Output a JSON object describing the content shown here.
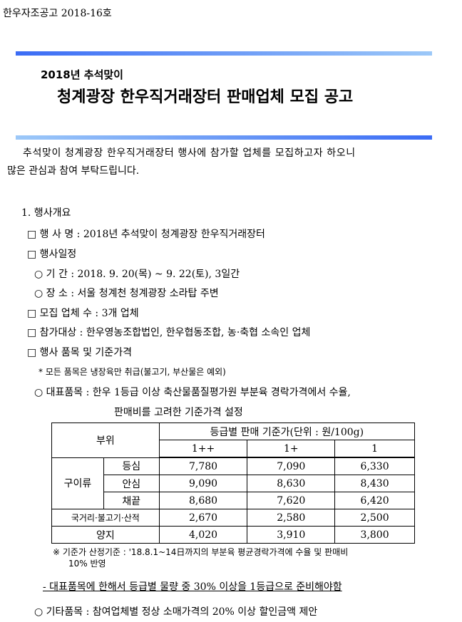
{
  "doc_number": "한우자조공고 2018-16호",
  "subtitle": "2018년 추석맞이",
  "title": "청계광장 한우직거래장터 판매업체 모집 공고",
  "intro": [
    "추석맞이 청계광장 한우직거래장터 행사에 참가할 업체를 모집하고자 하오니",
    "많은 관심과 참여 부탁드립니다."
  ],
  "section1": "1. 행사개요",
  "items": [
    "□ 행 사 명 : 2018년 추석맞이 청계광장 한우직거래장터",
    "□ 행사일정",
    "○ 기 간 : 2018. 9. 20(목) ~ 9. 22(토), 3일간",
    "○ 장 소 : 서울 청계천 청계광장 소라탑 주변",
    "□ 모집 업체 수 : 3개 업체",
    "□ 참가대상 : 한우영농조합법인, 한우협동조합, 농·축협 소속인 업체",
    "□ 행사 품목 및 기준가격",
    "* 모든 품목은 냉장육만 취급(불고기, 부산물은 예외)",
    "○ 대표품목 : 한우 1등급 이상 축산물품질평가원 부분육 경락가격에서 수율,",
    "판매비를 고려한 기준가격 설정"
  ],
  "table": {
    "header_part": "부위",
    "header_price": "등급별 판매 기준가(단위 : 원/100g)",
    "grades": [
      "1++",
      "1+",
      "1"
    ],
    "group": "구이류",
    "rows": [
      {
        "name": "등심",
        "values": [
          "7,780",
          "7,090",
          "6,330"
        ]
      },
      {
        "name": "안심",
        "values": [
          "9,090",
          "8,630",
          "8,430"
        ]
      },
      {
        "name": "채끝",
        "values": [
          "8,680",
          "7,620",
          "6,420"
        ]
      },
      {
        "name": "국거리·불고기·산적",
        "values": [
          "2,670",
          "2,580",
          "2,500"
        ]
      },
      {
        "name": "양지",
        "values": [
          "4,020",
          "3,910",
          "3,800"
        ]
      }
    ]
  },
  "footnote": [
    "※ 기준가 산정기준 : '18.8.1~14日까지의 부분육 평균경락가격에 수율 및 판매비",
    "10% 반영"
  ],
  "dash_note": "- 대표품목에 한해서 등급별 물량 중 30% 이상을 1등급으로 준비해야함",
  "other_items": "○ 기타품목 : 참여업체별 정상 소매가격의 20% 이상 할인금액 제안",
  "colors": {
    "bar_dark": "#3b6cf5",
    "bar_light": "#9cc8f8"
  }
}
